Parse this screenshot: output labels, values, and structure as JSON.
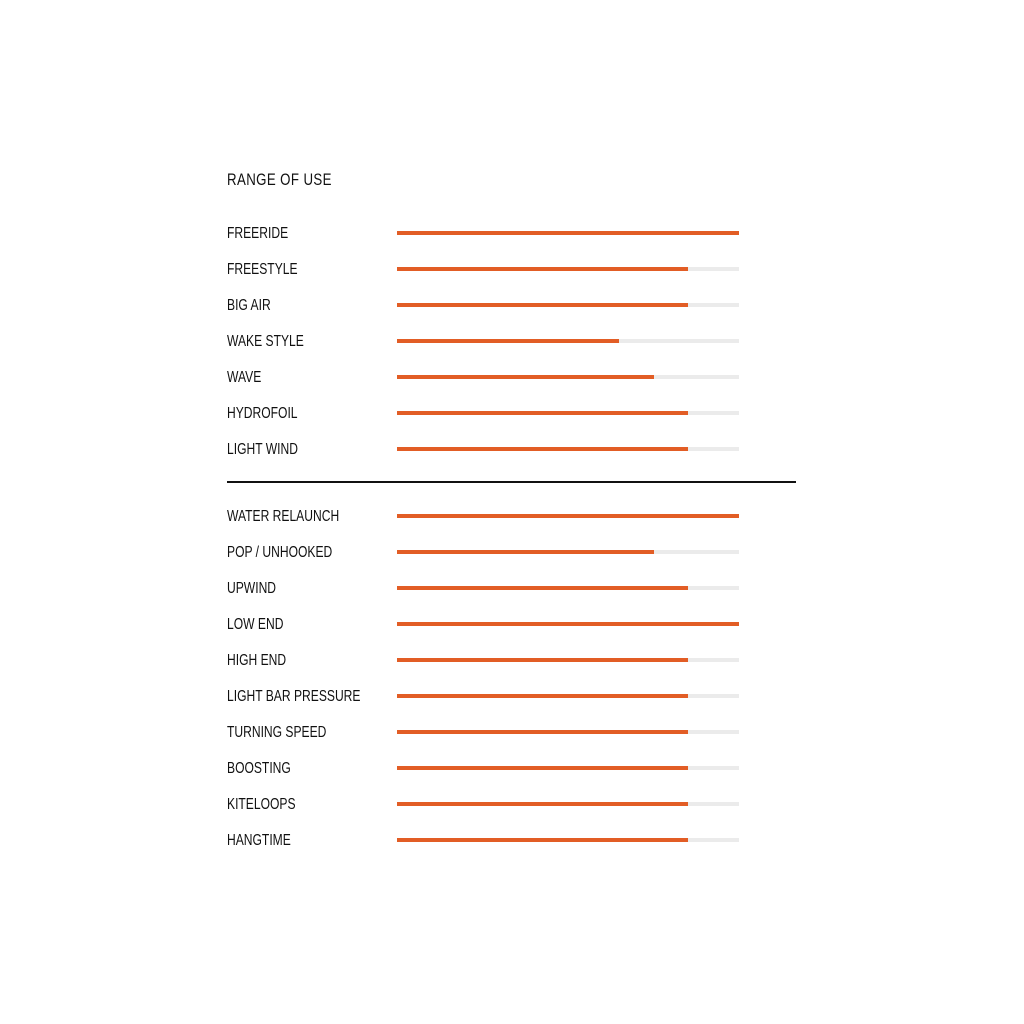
{
  "chart_data": {
    "type": "bar",
    "orientation": "horizontal",
    "title": "RANGE OF USE",
    "scale_max": 100,
    "colors": {
      "fill": "#e25d25",
      "track": "#ebebeb",
      "divider": "#111111"
    },
    "groups": [
      {
        "categories": [
          "FREERIDE",
          "FREESTYLE",
          "BIG AIR",
          "WAKE STYLE",
          "WAVE",
          "HYDROFOIL",
          "LIGHT WIND"
        ],
        "values": [
          100,
          85,
          85,
          65,
          75,
          85,
          85
        ]
      },
      {
        "categories": [
          "WATER RELAUNCH",
          "POP / UNHOOKED",
          "UPWIND",
          "LOW END",
          "HIGH END",
          "LIGHT BAR PRESSURE",
          "TURNING SPEED",
          "BOOSTING",
          "KITELOOPS",
          "HANGTIME"
        ],
        "values": [
          100,
          75,
          85,
          100,
          85,
          85,
          85,
          85,
          85,
          85
        ]
      }
    ]
  }
}
